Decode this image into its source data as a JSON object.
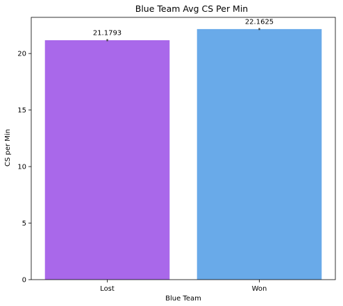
{
  "chart_data": {
    "type": "bar",
    "title": "Blue Team Avg CS Per Min",
    "xlabel": "Blue Team",
    "ylabel": "CS per Min",
    "categories": [
      "Lost",
      "Won"
    ],
    "values": [
      21.1793,
      22.1625
    ],
    "data_labels": [
      "21.1793",
      "22.1625"
    ],
    "error_low": [
      21.09,
      22.08
    ],
    "error_high": [
      21.27,
      22.25
    ],
    "colors": [
      "#a968ea",
      "#69aae9"
    ],
    "ylim": [
      0,
      23.2
    ],
    "yticks": [
      0,
      5,
      10,
      15,
      20
    ],
    "ytick_labels": [
      "0",
      "5",
      "10",
      "15",
      "20"
    ],
    "grid": false,
    "legend": "none"
  }
}
